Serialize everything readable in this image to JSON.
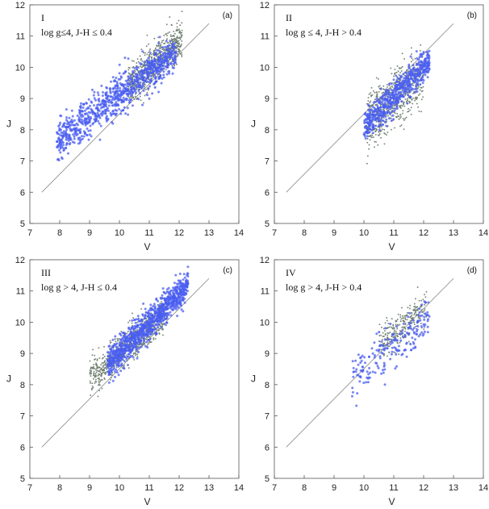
{
  "figure": {
    "colors": {
      "gray_points": "#6f7f6f",
      "blue_points": "#4a5ef0",
      "line": "#888888",
      "frame": "#555555"
    }
  },
  "chart_data": [
    {
      "type": "scatter",
      "panel_label": "(a)",
      "roman": "I",
      "condition": "log g≤4, J-H ≤ 0.4",
      "xlabel": "V",
      "ylabel": "J",
      "xlim": [
        7,
        14
      ],
      "ylim": [
        5,
        12
      ],
      "xticks": [
        "7",
        "8",
        "9",
        "10",
        "11",
        "12",
        "13",
        "14"
      ],
      "yticks": [
        "5",
        "6",
        "7",
        "8",
        "9",
        "10",
        "11",
        "12"
      ],
      "reference_line": {
        "x": [
          7.4,
          13.0
        ],
        "y": [
          6.0,
          11.4
        ]
      },
      "series": [
        {
          "name": "gray",
          "color": "#6f7f6f",
          "cluster": {
            "xmin": 10.3,
            "xmax": 12.1,
            "slope": 0.85,
            "x0": 11.2,
            "y0": 10.15,
            "spread": 0.3,
            "count": 650
          }
        },
        {
          "name": "blue",
          "color": "#4a5ef0",
          "cluster": {
            "xmin": 7.9,
            "xmax": 11.9,
            "slope": 0.72,
            "x0": 10.3,
            "y0": 9.35,
            "spread": 0.3,
            "count": 900
          }
        }
      ]
    },
    {
      "type": "scatter",
      "panel_label": "(b)",
      "roman": "II",
      "condition": "log g ≤ 4, J-H > 0.4",
      "xlabel": "V",
      "ylabel": "J",
      "xlim": [
        7,
        14
      ],
      "ylim": [
        5,
        12
      ],
      "xticks": [
        "7",
        "8",
        "9",
        "10",
        "11",
        "12",
        "13",
        "14"
      ],
      "yticks": [
        "5",
        "6",
        "7",
        "8",
        "9",
        "10",
        "11",
        "12"
      ],
      "reference_line": {
        "x": [
          7.4,
          13.0
        ],
        "y": [
          6.0,
          11.4
        ]
      },
      "series": [
        {
          "name": "gray",
          "color": "#6f7f6f",
          "cluster": {
            "xmin": 10.1,
            "xmax": 12.0,
            "slope": 0.8,
            "x0": 10.8,
            "y0": 8.8,
            "spread": 0.45,
            "count": 650
          }
        },
        {
          "name": "blue",
          "color": "#4a5ef0",
          "cluster": {
            "xmin": 10.0,
            "xmax": 12.2,
            "slope": 0.95,
            "x0": 11.2,
            "y0": 9.25,
            "spread": 0.25,
            "count": 600
          }
        }
      ]
    },
    {
      "type": "scatter",
      "panel_label": "(c)",
      "roman": "III",
      "condition": "log g > 4,  J-H ≤ 0.4",
      "xlabel": "V",
      "ylabel": "J",
      "xlim": [
        7,
        14
      ],
      "ylim": [
        5,
        12
      ],
      "xticks": [
        "7",
        "8",
        "9",
        "10",
        "11",
        "12",
        "13",
        "14"
      ],
      "yticks": [
        "5",
        "6",
        "7",
        "8",
        "9",
        "10",
        "11",
        "12"
      ],
      "reference_line": {
        "x": [
          7.4,
          13.0
        ],
        "y": [
          6.0,
          11.4
        ]
      },
      "series": [
        {
          "name": "gray",
          "color": "#6f7f6f",
          "cluster": {
            "xmin": 9.0,
            "xmax": 11.6,
            "slope": 0.8,
            "x0": 10.3,
            "y0": 9.25,
            "spread": 0.28,
            "count": 700
          }
        },
        {
          "name": "blue",
          "color": "#4a5ef0",
          "cluster": {
            "xmin": 9.6,
            "xmax": 12.3,
            "slope": 0.95,
            "x0": 11.2,
            "y0": 10.15,
            "spread": 0.25,
            "count": 1000
          }
        }
      ]
    },
    {
      "type": "scatter",
      "panel_label": "(d)",
      "roman": "IV",
      "condition": "log g > 4,  J-H > 0.4",
      "xlabel": "V",
      "ylabel": "J",
      "xlim": [
        7,
        14
      ],
      "ylim": [
        5,
        12
      ],
      "xticks": [
        "7",
        "8",
        "9",
        "10",
        "11",
        "12",
        "13",
        "14"
      ],
      "yticks": [
        "5",
        "6",
        "7",
        "8",
        "9",
        "10",
        "11",
        "12"
      ],
      "reference_line": {
        "x": [
          7.4,
          13.0
        ],
        "y": [
          6.0,
          11.4
        ]
      },
      "series": [
        {
          "name": "gray",
          "color": "#6f7f6f",
          "cluster": {
            "xmin": 10.5,
            "xmax": 12.1,
            "slope": 0.8,
            "x0": 11.3,
            "y0": 9.9,
            "spread": 0.28,
            "count": 260
          }
        },
        {
          "name": "blue",
          "color": "#4a5ef0",
          "cluster": {
            "xmin": 9.6,
            "xmax": 12.2,
            "slope": 0.75,
            "x0": 10.7,
            "y0": 9.0,
            "spread": 0.35,
            "count": 200
          }
        }
      ]
    }
  ]
}
